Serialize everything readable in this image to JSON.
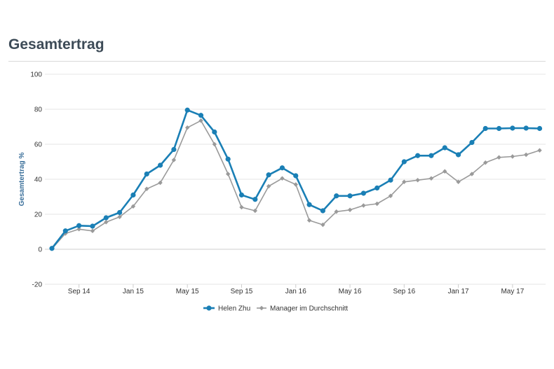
{
  "page": {
    "title": "Gesamtertrag"
  },
  "chart_data": {
    "type": "line",
    "ylabel": "Gesamtertrag %",
    "ylim": [
      -20,
      100
    ],
    "yticks": [
      -20,
      0,
      20,
      40,
      60,
      80,
      100
    ],
    "x_tick_labels": [
      "Sep 14",
      "Jan 15",
      "May 15",
      "Sep 15",
      "Jan 16",
      "May 16",
      "Sep 16",
      "Jan 17",
      "May 17"
    ],
    "x_tick_index": [
      2,
      6,
      10,
      14,
      18,
      22,
      26,
      30,
      34
    ],
    "grid": true,
    "legend_position": "bottom",
    "series": [
      {
        "name": "Helen Zhu",
        "color": "#1a7fb5",
        "marker": "circle",
        "values": [
          0.5,
          10.5,
          13.5,
          13.2,
          18,
          21,
          31,
          43,
          48,
          57,
          79.5,
          76.5,
          67,
          51.5,
          31,
          28.5,
          42.5,
          46.5,
          42,
          25.5,
          22,
          30.5,
          30.5,
          32,
          35,
          39.5,
          50,
          53.5,
          53.5,
          58,
          54,
          61,
          69,
          69,
          69.2,
          69.2,
          69
        ]
      },
      {
        "name": "Manager im Durchschnitt",
        "color": "#9a9a9a",
        "marker": "diamond",
        "values": [
          0.3,
          9,
          11.5,
          10.5,
          15.5,
          18.5,
          24.5,
          34.5,
          38,
          51,
          69.5,
          73.5,
          60,
          43,
          24,
          22,
          36,
          40.5,
          37,
          16.5,
          14,
          21.5,
          22.5,
          25,
          26,
          30.5,
          38.5,
          39.5,
          40.5,
          44.5,
          38.5,
          43,
          49.5,
          52.5,
          53,
          54,
          56.5
        ]
      }
    ]
  }
}
